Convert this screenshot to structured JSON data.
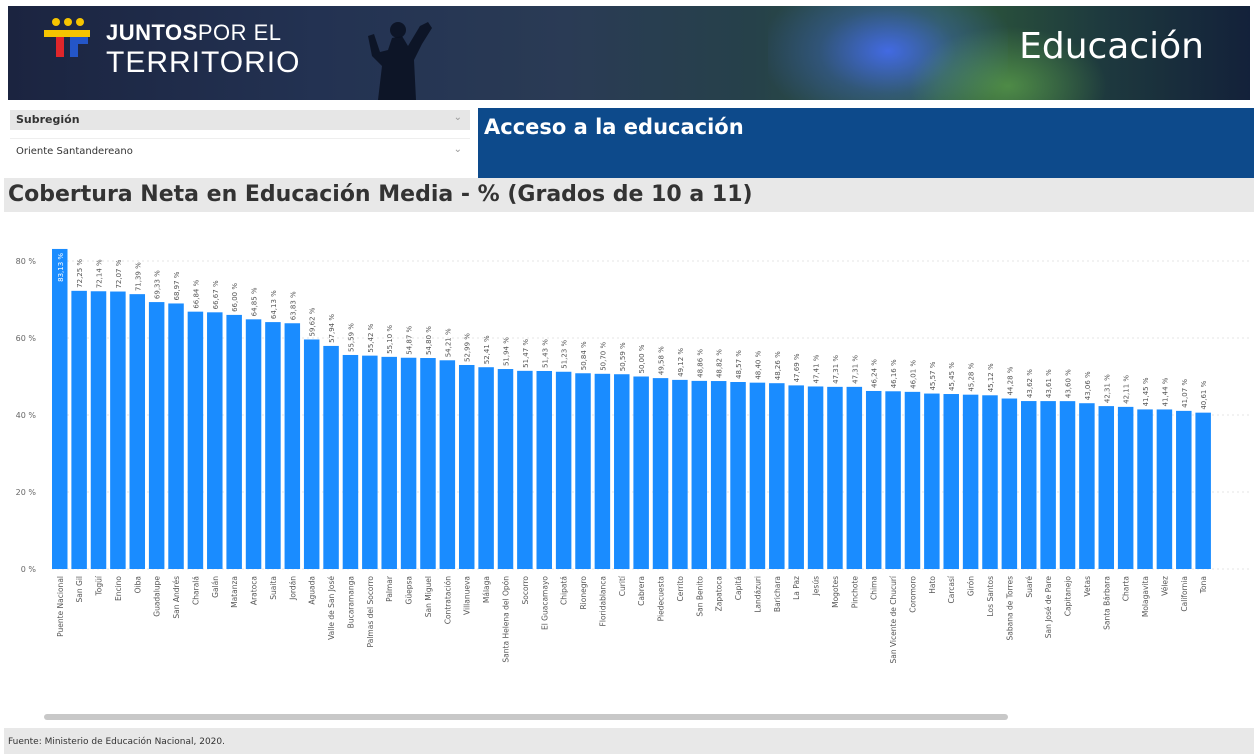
{
  "header": {
    "logo_line1_bold": "JUNTOS",
    "logo_line1_thin": "POR EL",
    "logo_line2": "TERRITORIO",
    "title": "Educación"
  },
  "filter": {
    "label": "Subregión",
    "value": "Oriente Santandereano"
  },
  "section": {
    "title": "Acceso a la educación"
  },
  "chart_data": {
    "type": "bar",
    "title": "Cobertura Neta en Educación Media - % (Grados de 10 a 11)",
    "xlabel": "",
    "ylabel": "",
    "ylim": [
      0,
      80
    ],
    "yticks": [
      "0 %",
      "20 %",
      "40 %",
      "60 %",
      "80 %"
    ],
    "grid": true,
    "bar_color": "#1a8cff",
    "categories": [
      "Puente Nacional",
      "San Gil",
      "Togüí",
      "Encino",
      "Oiba",
      "Guadalupe",
      "San Andrés",
      "Charalá",
      "Galán",
      "Matanza",
      "Aratoca",
      "Suaita",
      "Jordán",
      "Aguada",
      "Valle de San José",
      "Bucaramanga",
      "Palmas del Socorro",
      "Palmar",
      "Güepsa",
      "San Miguel",
      "Contratación",
      "Villanueva",
      "Málaga",
      "Santa Helena del Opón",
      "Socorro",
      "El Guacamayo",
      "Chipatá",
      "Rionegro",
      "Floridablanca",
      "Curití",
      "Cabrera",
      "Piedecuesta",
      "Cerrito",
      "San Benito",
      "Zapatoca",
      "Capitá",
      "Landázuri",
      "Barichara",
      "La Paz",
      "Jesús",
      "Mogotes",
      "Pinchote",
      "Chima",
      "San Vicente de Chucurí",
      "Coromoro",
      "Hato",
      "Carcasí",
      "Girón",
      "Los Santos",
      "Sabana de Torres",
      "Suaré",
      "San José de Pare",
      "Capitanejo",
      "Vetas",
      "Santa Bárbara",
      "Charta",
      "Molagavita",
      "Vélez",
      "California",
      "Tona"
    ],
    "values": [
      83.13,
      72.25,
      72.14,
      72.07,
      71.39,
      69.33,
      68.97,
      66.84,
      66.67,
      66.0,
      64.85,
      64.13,
      63.83,
      59.62,
      57.94,
      55.59,
      55.42,
      55.1,
      54.87,
      54.8,
      54.21,
      52.99,
      52.41,
      51.94,
      51.47,
      51.43,
      51.23,
      50.84,
      50.7,
      50.59,
      50.0,
      49.58,
      49.12,
      48.86,
      48.82,
      48.57,
      48.4,
      48.26,
      47.69,
      47.41,
      47.31,
      47.31,
      46.24,
      46.16,
      46.01,
      45.57,
      45.45,
      45.28,
      45.12,
      44.28,
      43.62,
      43.61,
      43.6,
      43.06,
      42.31,
      42.11,
      41.45,
      41.44,
      41.07,
      40.61
    ],
    "value_labels": [
      "83,13 %",
      "72,25 %",
      "72,14 %",
      "72,07 %",
      "71,39 %",
      "69,33 %",
      "68,97 %",
      "66,84 %",
      "66,67 %",
      "66,00 %",
      "64,85 %",
      "64,13 %",
      "63,83 %",
      "59,62 %",
      "57,94 %",
      "55,59 %",
      "55,42 %",
      "55,10 %",
      "54,87 %",
      "54,80 %",
      "54,21 %",
      "52,99 %",
      "52,41 %",
      "51,94 %",
      "51,47 %",
      "51,43 %",
      "51,23 %",
      "50,84 %",
      "50,70 %",
      "50,59 %",
      "50,00 %",
      "49,58 %",
      "49,12 %",
      "48,86 %",
      "48,82 %",
      "48,57 %",
      "48,40 %",
      "48,26 %",
      "47,69 %",
      "47,41 %",
      "47,31 %",
      "47,31 %",
      "46,24 %",
      "46,16 %",
      "46,01 %",
      "45,57 %",
      "45,45 %",
      "45,28 %",
      "45,12 %",
      "44,28 %",
      "43,62 %",
      "43,61 %",
      "43,60 %",
      "43,06 %",
      "42,31 %",
      "42,11 %",
      "41,45 %",
      "41,44 %",
      "41,07 %",
      "40,61 %"
    ]
  },
  "footer": {
    "source": "Fuente: Ministerio de Educación Nacional, 2020."
  }
}
